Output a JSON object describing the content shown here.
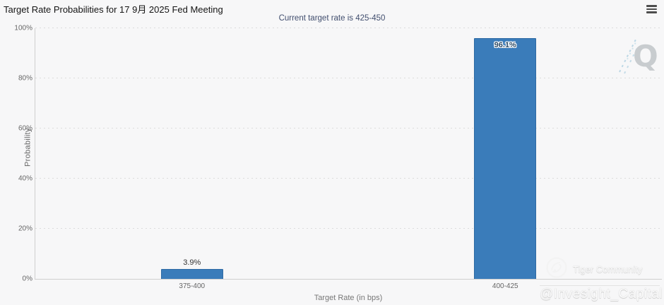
{
  "header": {
    "title": "Target Rate Probabilities for 17 9月 2025 Fed Meeting",
    "menu_icon": "hamburger-icon"
  },
  "chart_data": {
    "type": "bar",
    "title": "Target Rate Probabilities for 17 9月 2025 Fed Meeting",
    "subtitle": "Current target rate is 425-450",
    "categories": [
      "375-400",
      "400-425"
    ],
    "values": [
      3.9,
      96.1
    ],
    "data_labels": [
      "3.9%",
      "96.1%"
    ],
    "xlabel": "Target Rate (in bps)",
    "ylabel": "Probability",
    "ylim": [
      0,
      100
    ],
    "yticks": [
      0,
      20,
      40,
      60,
      80,
      100
    ],
    "ytick_labels": [
      "0%",
      "20%",
      "40%",
      "60%",
      "80%",
      "100%"
    ],
    "grid": "horizontal-dotted",
    "legend": "none",
    "bar_color": "#3a7cba"
  },
  "watermarks": {
    "q_logo": "Q",
    "tiger_community": "Tiger Community",
    "handle": "@Invesight_Capital"
  },
  "colors": {
    "background": "#f7f7f8",
    "bar": "#3a7cba",
    "subtitle_text": "#414e6e",
    "axis_text": "#666666",
    "q_gray": "#c6cacd",
    "q_dash_blue": "#b9d6e4"
  }
}
